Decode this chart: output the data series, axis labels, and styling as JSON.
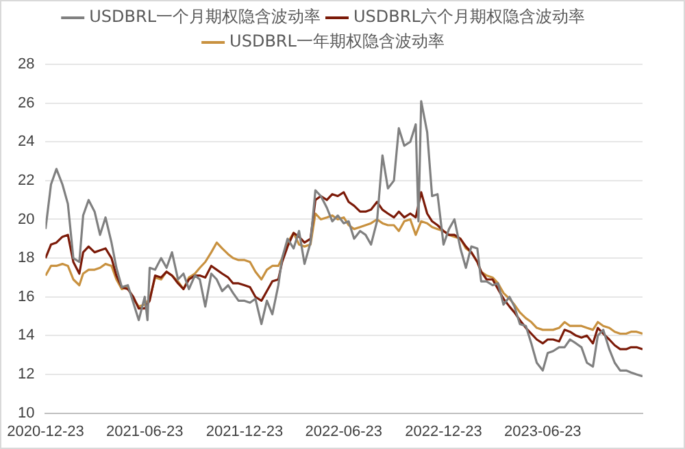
{
  "chart_data": {
    "type": "line",
    "legend": "top",
    "grid": "y",
    "marker": "none",
    "line_style": "solid",
    "xlim": [
      "2020-12-23",
      "2023-12-23"
    ],
    "xticks": [
      "2020-12-23",
      "2021-06-23",
      "2021-12-23",
      "2022-06-23",
      "2022-12-23",
      "2023-06-23"
    ],
    "ylim": [
      10,
      28
    ],
    "yticks": [
      10,
      12,
      14,
      16,
      18,
      20,
      22,
      24,
      26,
      28
    ],
    "x": [
      "2020-12-23",
      "2021-01-02",
      "2021-01-12",
      "2021-01-23",
      "2021-02-02",
      "2021-02-12",
      "2021-02-23",
      "2021-03-02",
      "2021-03-12",
      "2021-03-23",
      "2021-04-02",
      "2021-04-12",
      "2021-04-23",
      "2021-05-02",
      "2021-05-12",
      "2021-05-23",
      "2021-06-02",
      "2021-06-12",
      "2021-06-23",
      "2021-07-02",
      "2021-07-12",
      "2021-07-23",
      "2021-08-02",
      "2021-08-12",
      "2021-08-23",
      "2021-09-02",
      "2021-09-12",
      "2021-09-23",
      "2021-10-02",
      "2021-10-12",
      "2021-10-23",
      "2021-11-02",
      "2021-11-12",
      "2021-11-23",
      "2021-12-02",
      "2021-12-12",
      "2021-12-23",
      "2022-01-02",
      "2022-01-12",
      "2022-01-23",
      "2022-02-02",
      "2022-02-12",
      "2022-02-23",
      "2022-03-02",
      "2022-03-12",
      "2022-03-23",
      "2022-04-02",
      "2022-04-12",
      "2022-04-23",
      "2022-05-02",
      "2022-05-12",
      "2022-05-23",
      "2022-06-02",
      "2022-06-12",
      "2022-06-23",
      "2022-07-02",
      "2022-07-12",
      "2022-07-23",
      "2022-08-02",
      "2022-08-12",
      "2022-08-23",
      "2022-09-02",
      "2022-09-12",
      "2022-09-23",
      "2022-10-02",
      "2022-10-12",
      "2022-10-23",
      "2022-11-02",
      "2022-11-12",
      "2022-11-23",
      "2022-12-02",
      "2022-12-12",
      "2022-12-23",
      "2023-01-02",
      "2023-01-12",
      "2023-01-23",
      "2023-02-02",
      "2023-02-12",
      "2023-02-23",
      "2023-03-02",
      "2023-03-12",
      "2023-03-23",
      "2023-04-02",
      "2023-04-12",
      "2023-04-23",
      "2023-05-02",
      "2023-05-12",
      "2023-05-23",
      "2023-06-02",
      "2023-06-12",
      "2023-06-23",
      "2023-07-02",
      "2023-07-12",
      "2023-07-23",
      "2023-08-02",
      "2023-08-12",
      "2023-08-23",
      "2023-09-02",
      "2023-09-12",
      "2023-09-23",
      "2023-10-02",
      "2023-10-12",
      "2023-10-23",
      "2023-11-02",
      "2023-11-12",
      "2023-11-23",
      "2023-12-02",
      "2023-12-12",
      "2023-12-23"
    ],
    "series": [
      {
        "name": "USDBRL一个月期权隐含波动率",
        "color": "#808080",
        "x": [
          "2020-12-23",
          "2021-01-02",
          "2021-01-12",
          "2021-01-23",
          "2021-02-02",
          "2021-02-12",
          "2021-02-23",
          "2021-03-02",
          "2021-03-12",
          "2021-03-23",
          "2021-04-02",
          "2021-04-12",
          "2021-04-23",
          "2021-05-02",
          "2021-05-12",
          "2021-05-23",
          "2021-06-02",
          "2021-06-12",
          "2021-06-23",
          "2021-06-28",
          "2021-07-02",
          "2021-07-12",
          "2021-07-23",
          "2021-08-02",
          "2021-08-12",
          "2021-08-23",
          "2021-09-02",
          "2021-09-12",
          "2021-09-23",
          "2021-10-02",
          "2021-10-12",
          "2021-10-23",
          "2021-11-02",
          "2021-11-12",
          "2021-11-23",
          "2021-12-02",
          "2021-12-12",
          "2021-12-23",
          "2022-01-02",
          "2022-01-12",
          "2022-01-23",
          "2022-02-02",
          "2022-02-12",
          "2022-02-23",
          "2022-03-02",
          "2022-03-12",
          "2022-03-23",
          "2022-04-02",
          "2022-04-12",
          "2022-04-23",
          "2022-05-02",
          "2022-05-12",
          "2022-05-23",
          "2022-06-02",
          "2022-06-12",
          "2022-06-23",
          "2022-07-02",
          "2022-07-12",
          "2022-07-23",
          "2022-08-02",
          "2022-08-12",
          "2022-08-23",
          "2022-09-02",
          "2022-09-12",
          "2022-09-23",
          "2022-10-02",
          "2022-10-12",
          "2022-10-23",
          "2022-11-02",
          "2022-11-07",
          "2022-11-12",
          "2022-11-23",
          "2022-12-02",
          "2022-12-12",
          "2022-12-23",
          "2023-01-02",
          "2023-01-12",
          "2023-01-23",
          "2023-02-02",
          "2023-02-12",
          "2023-02-23",
          "2023-03-02",
          "2023-03-12",
          "2023-03-23",
          "2023-04-02",
          "2023-04-12",
          "2023-04-23",
          "2023-05-02",
          "2023-05-12",
          "2023-05-23",
          "2023-06-02",
          "2023-06-12",
          "2023-06-23",
          "2023-07-02",
          "2023-07-12",
          "2023-07-23",
          "2023-08-02",
          "2023-08-12",
          "2023-08-23",
          "2023-09-02",
          "2023-09-12",
          "2023-09-23",
          "2023-10-02",
          "2023-10-12",
          "2023-10-23",
          "2023-11-02",
          "2023-11-12",
          "2023-11-23",
          "2023-12-02",
          "2023-12-12",
          "2023-12-23"
        ],
        "values": [
          19.5,
          21.8,
          22.6,
          21.8,
          20.8,
          18.0,
          17.8,
          20.2,
          21.0,
          20.4,
          19.2,
          20.1,
          18.8,
          17.5,
          16.5,
          16.6,
          15.7,
          14.8,
          16.0,
          14.8,
          17.5,
          17.4,
          18.0,
          17.5,
          18.3,
          16.9,
          17.2,
          16.4,
          17.1,
          16.9,
          15.5,
          17.2,
          16.9,
          16.3,
          16.6,
          16.2,
          15.8,
          15.8,
          15.7,
          15.9,
          14.6,
          15.8,
          15.1,
          16.6,
          18.0,
          19.0,
          18.5,
          19.4,
          17.7,
          18.8,
          21.5,
          21.2,
          20.6,
          19.9,
          20.2,
          19.8,
          19.9,
          19.0,
          19.4,
          19.2,
          18.7,
          19.9,
          23.3,
          21.6,
          22.0,
          24.7,
          23.8,
          24.0,
          24.9,
          19.9,
          26.1,
          24.5,
          21.2,
          21.3,
          18.7,
          19.5,
          20.0,
          18.5,
          17.5,
          18.6,
          18.5,
          16.8,
          16.8,
          16.6,
          16.7,
          15.6,
          16.0,
          15.5,
          14.6,
          14.5,
          13.6,
          12.6,
          12.2,
          13.1,
          13.2,
          13.4,
          13.4,
          13.8,
          13.6,
          13.4,
          12.6,
          12.4,
          14.0,
          14.3,
          13.3,
          12.6,
          12.2,
          12.2,
          12.1,
          12.0,
          11.9
        ]
      },
      {
        "name": "USDBRL六个月期权隐含波动率",
        "color": "#7b1a08",
        "values": [
          18.0,
          18.7,
          18.8,
          19.1,
          19.2,
          17.8,
          17.2,
          18.3,
          18.6,
          18.3,
          18.4,
          18.5,
          18.0,
          17.1,
          16.5,
          16.4,
          16.0,
          15.4,
          15.4,
          15.8,
          17.1,
          17.0,
          17.3,
          17.1,
          16.7,
          16.4,
          16.9,
          17.1,
          17.1,
          17.0,
          17.6,
          17.4,
          17.2,
          17.0,
          16.7,
          16.7,
          16.6,
          16.5,
          16.0,
          15.8,
          16.3,
          16.8,
          16.9,
          17.8,
          18.6,
          19.3,
          19.1,
          18.8,
          19.0,
          21.0,
          21.2,
          21.0,
          21.3,
          21.2,
          21.4,
          20.9,
          20.7,
          20.4,
          20.4,
          20.5,
          20.9,
          20.5,
          20.3,
          20.1,
          20.4,
          20.1,
          20.3,
          20.1,
          21.4,
          20.3,
          19.9,
          19.7,
          19.4,
          19.2,
          19.2,
          19.0,
          18.6,
          18.3,
          17.8,
          17.3,
          16.9,
          16.9,
          16.4,
          15.9,
          15.5,
          15.2,
          14.8,
          14.4,
          14.1,
          13.8,
          13.6,
          13.8,
          13.8,
          13.7,
          14.3,
          14.2,
          14.0,
          13.9,
          14.0,
          13.6,
          14.4,
          14.1,
          13.8,
          13.5,
          13.3,
          13.3,
          13.4,
          13.4,
          13.3
        ]
      },
      {
        "name": "USDBRL一年期权隐含波动率",
        "color": "#c8913f",
        "values": [
          17.1,
          17.6,
          17.6,
          17.7,
          17.6,
          16.9,
          16.6,
          17.2,
          17.4,
          17.4,
          17.5,
          17.7,
          17.6,
          16.9,
          16.4,
          16.5,
          15.9,
          15.5,
          15.6,
          15.9,
          17.0,
          16.9,
          17.3,
          17.1,
          16.8,
          16.4,
          17.0,
          17.2,
          17.5,
          17.8,
          18.3,
          18.8,
          18.5,
          18.2,
          18.0,
          17.9,
          17.9,
          17.8,
          17.3,
          16.9,
          17.4,
          17.6,
          17.6,
          18.0,
          18.8,
          19.3,
          18.7,
          18.6,
          18.7,
          20.3,
          20.0,
          20.1,
          20.2,
          20.0,
          20.1,
          19.7,
          19.5,
          19.6,
          19.7,
          19.8,
          20.0,
          19.8,
          19.7,
          19.7,
          19.4,
          19.9,
          20.0,
          19.2,
          19.9,
          19.8,
          19.6,
          19.5,
          19.4,
          19.2,
          19.1,
          19.0,
          18.5,
          18.3,
          17.8,
          17.3,
          17.1,
          17.0,
          16.7,
          16.2,
          15.9,
          15.6,
          15.2,
          14.9,
          14.7,
          14.4,
          14.3,
          14.3,
          14.3,
          14.4,
          14.7,
          14.5,
          14.5,
          14.5,
          14.4,
          14.3,
          14.7,
          14.5,
          14.4,
          14.2,
          14.1,
          14.1,
          14.2,
          14.2,
          14.1
        ]
      }
    ]
  }
}
